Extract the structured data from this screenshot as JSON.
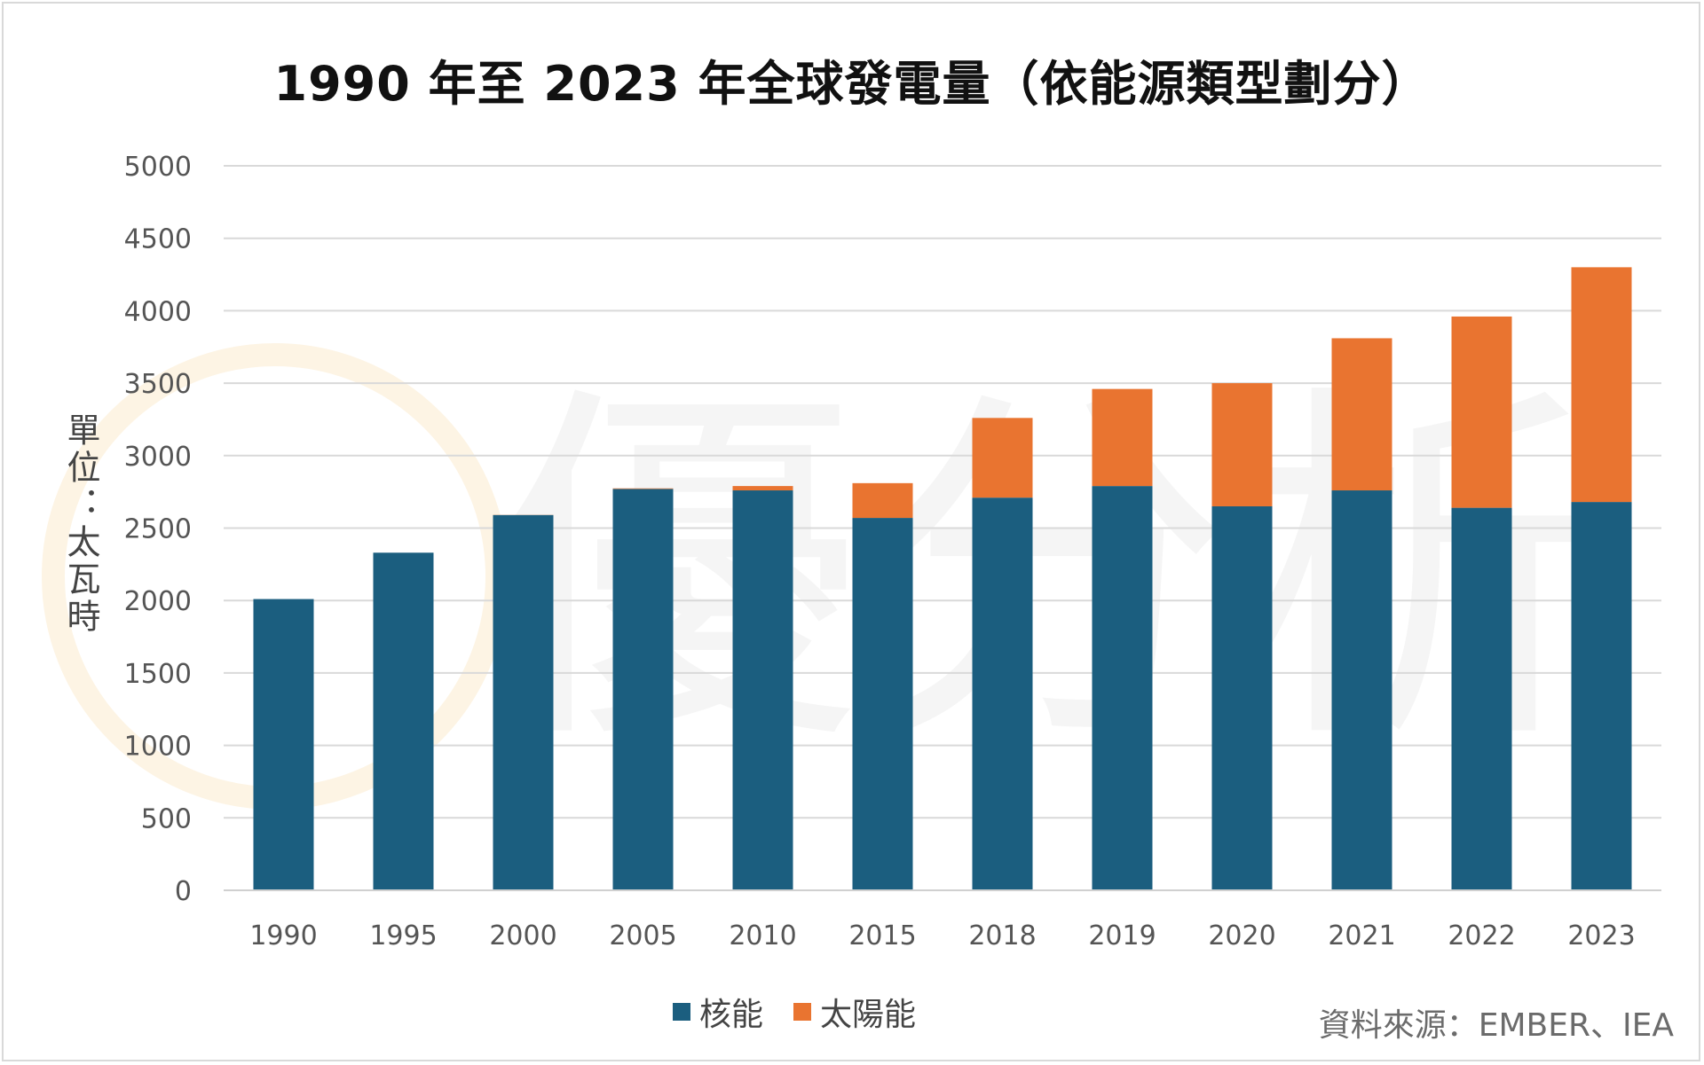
{
  "title": "1990 年至 2023 年全球發電量（依能源類型劃分）",
  "ylabel": "單位：太瓦時",
  "source": "資料來源：EMBER、IEA",
  "colors": {
    "nuclear": "#1b5e7f",
    "solar": "#e97430",
    "grid": "#d9d9d9",
    "watermark": "#f4f4f4"
  },
  "chart_data": {
    "type": "bar",
    "stacked": true,
    "title": "1990 年至 2023 年全球發電量（依能源類型劃分）",
    "ylabel": "單位：太瓦時",
    "categories": [
      "1990",
      "1995",
      "2000",
      "2005",
      "2010",
      "2015",
      "2018",
      "2019",
      "2020",
      "2021",
      "2022",
      "2023"
    ],
    "series": [
      {
        "name": "核能",
        "color": "#1b5e7f",
        "values": [
          2010,
          2330,
          2590,
          2770,
          2760,
          2570,
          2710,
          2790,
          2650,
          2760,
          2640,
          2680
        ]
      },
      {
        "name": "太陽能",
        "color": "#e97430",
        "values": [
          0,
          0,
          1,
          4,
          30,
          240,
          550,
          670,
          850,
          1050,
          1320,
          1620
        ]
      }
    ],
    "yticks": [
      0,
      500,
      1000,
      1500,
      2000,
      2500,
      3000,
      3500,
      4000,
      4500,
      5000
    ],
    "ylim": [
      0,
      5000
    ],
    "grid": true,
    "legend_position": "bottom"
  }
}
